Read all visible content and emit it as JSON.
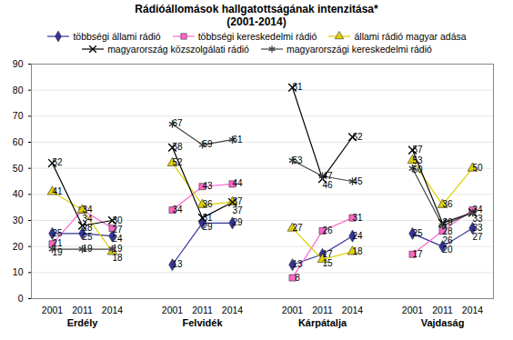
{
  "chart_data": {
    "type": "line",
    "title": "Rádióállomások hallgatottságának intenzitása*",
    "subtitle": "(2001-2014)",
    "categories": [
      "2001",
      "2011",
      "2014",
      null,
      "2001",
      "2011",
      "2014",
      null,
      "2001",
      "2011",
      "2014",
      null,
      "2001",
      "2011",
      "2014"
    ],
    "group_labels": [
      "Erdély",
      "Felvidék",
      "Kárpátalja",
      "Vajdaság"
    ],
    "series": [
      {
        "name": "többségi állami rádió",
        "color": "#333399",
        "marker": "diamond",
        "values": [
          25,
          25,
          24,
          null,
          13,
          29,
          29,
          null,
          13,
          17,
          24,
          null,
          25,
          20,
          27
        ]
      },
      {
        "name": "többségi kereskedelmi rádió",
        "color": "#ff66cc",
        "marker": "square",
        "values": [
          21,
          34,
          27,
          null,
          34,
          43,
          44,
          null,
          8,
          26,
          31,
          null,
          17,
          26,
          34
        ]
      },
      {
        "name": "állami rádió magyar adása",
        "color": "#e0d000",
        "marker": "triangle",
        "values": [
          41,
          34,
          18,
          null,
          52,
          36,
          37,
          null,
          27,
          15,
          18,
          null,
          53,
          36,
          50
        ]
      },
      {
        "name": "magyarország közszolgálati rádió",
        "color": "#000000",
        "marker": "times",
        "values": [
          52,
          28,
          30,
          null,
          58,
          31,
          37,
          null,
          81,
          46,
          62,
          null,
          57,
          29,
          33
        ]
      },
      {
        "name": "magyarországi kereskedelmi rádió",
        "color": "#444444",
        "marker": "asterisk",
        "values": [
          19,
          19,
          19,
          null,
          67,
          59,
          61,
          null,
          53,
          47,
          45,
          null,
          50,
          28,
          33
        ]
      }
    ],
    "ylim": [
      0,
      90
    ],
    "yticks": [
      0,
      10,
      20,
      30,
      40,
      50,
      60,
      70,
      80,
      90
    ],
    "grid": true,
    "legend": "top",
    "data_labels": true
  }
}
